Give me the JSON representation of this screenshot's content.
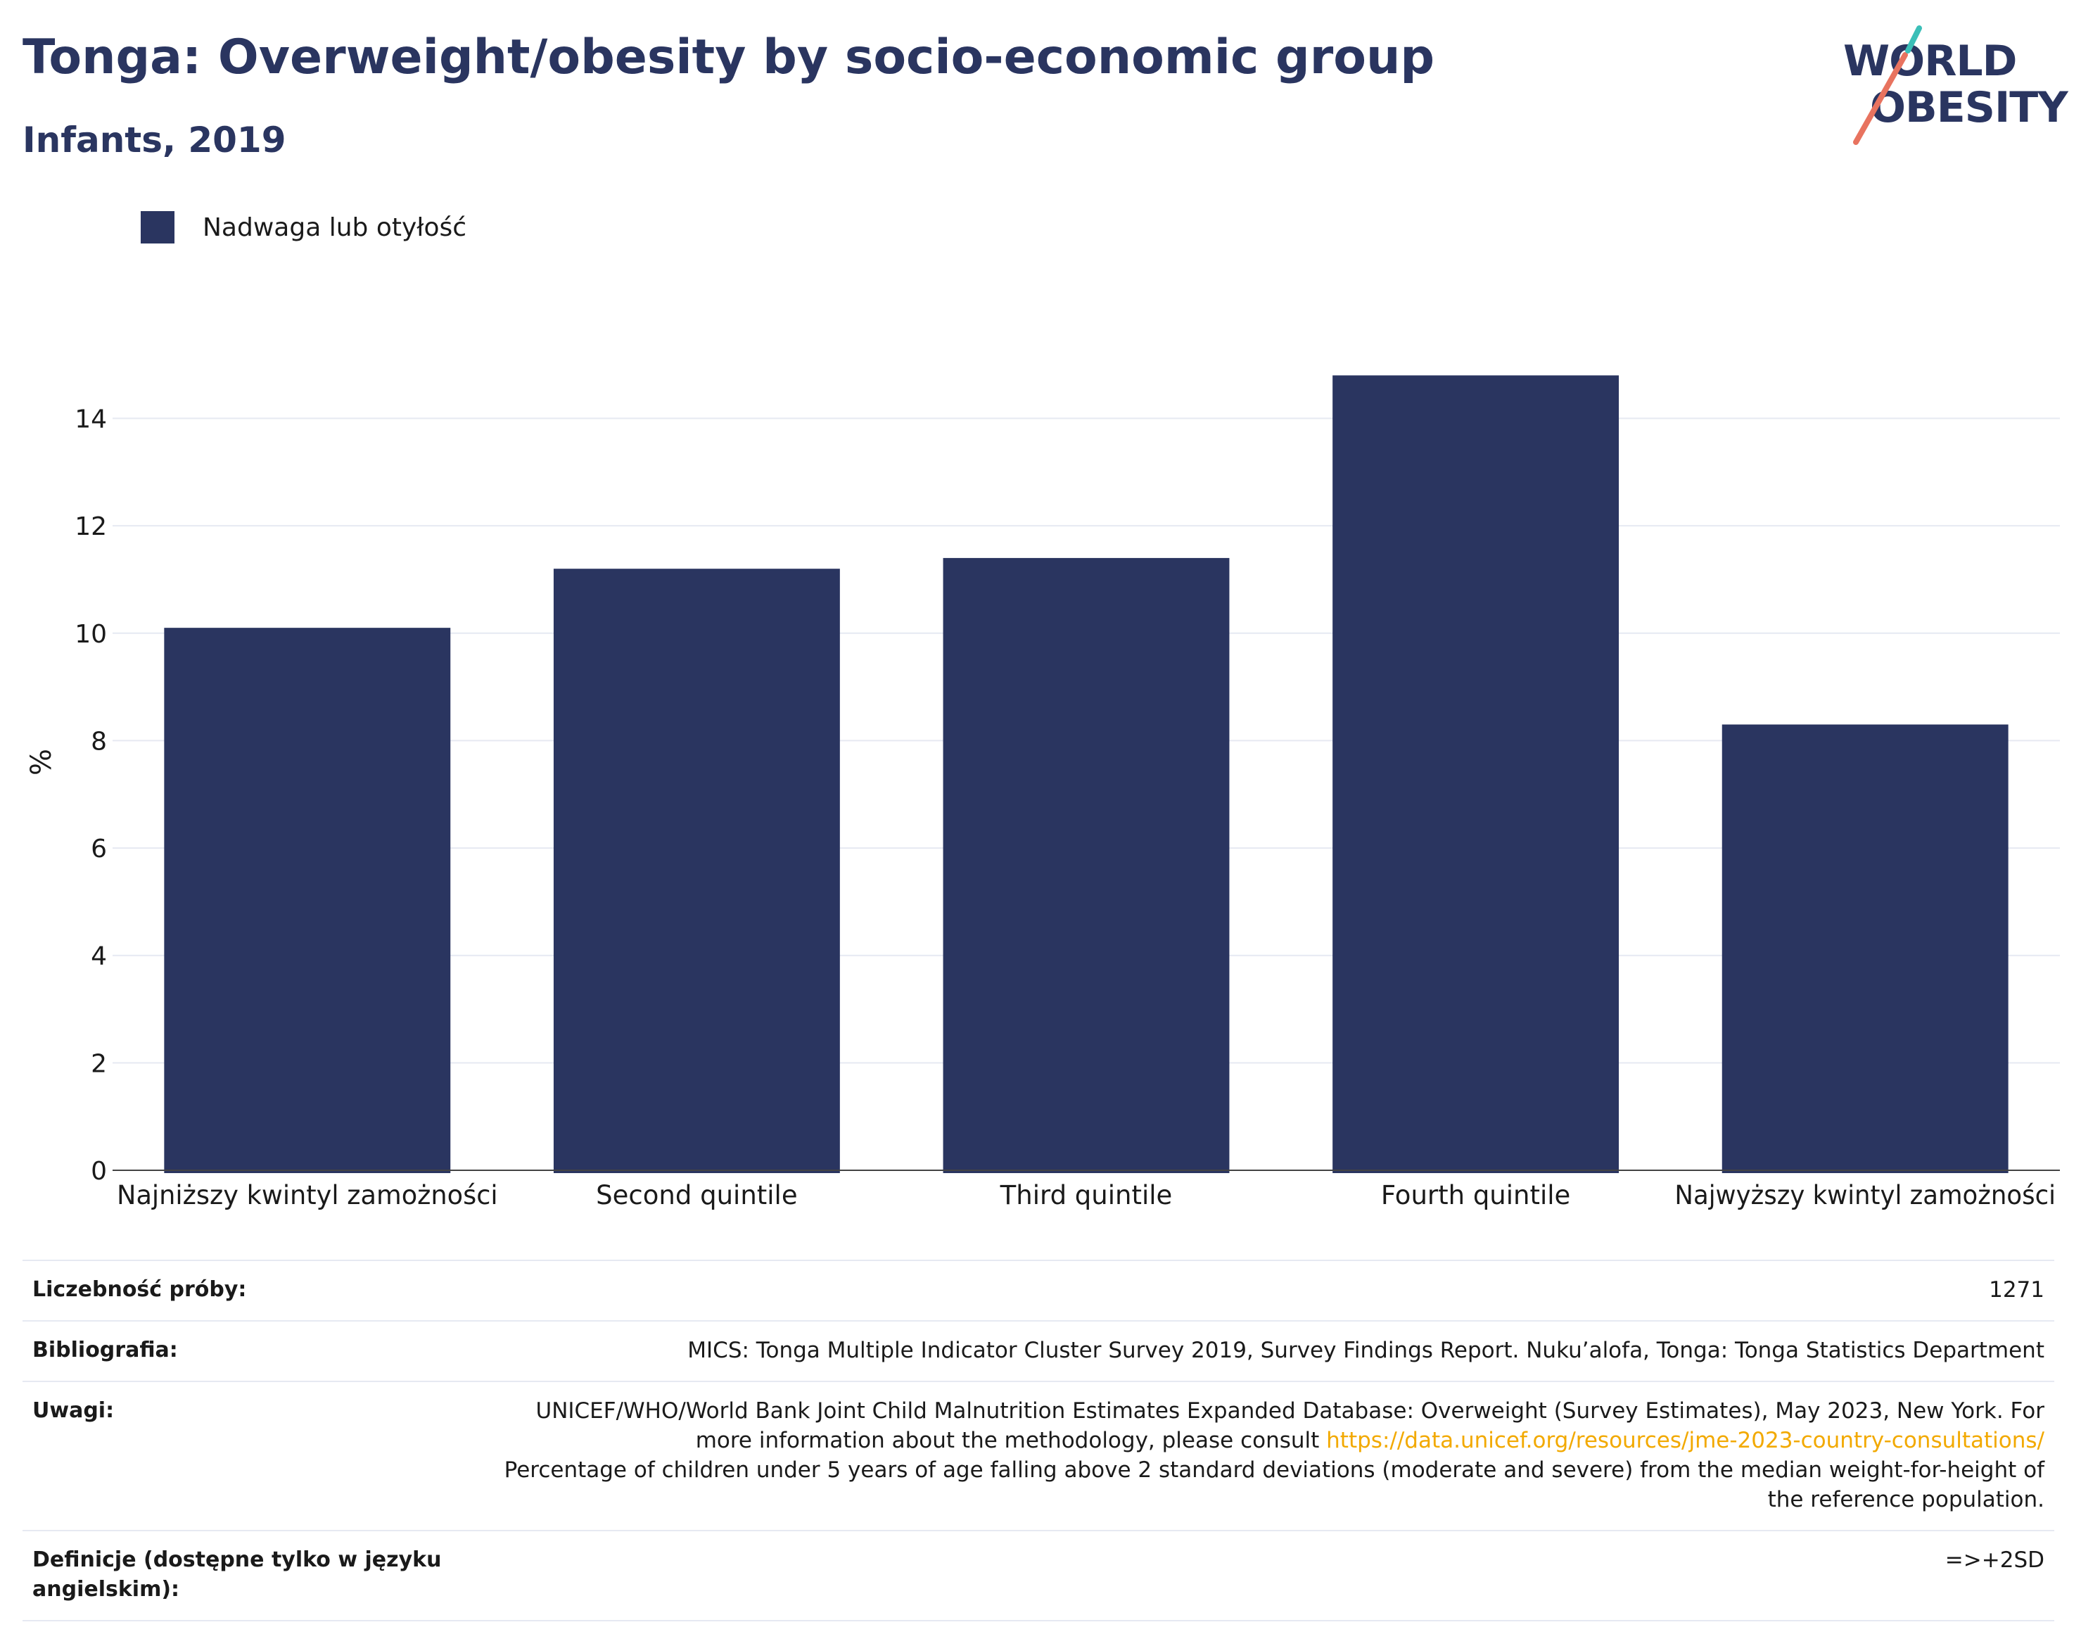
{
  "header": {
    "title": "Tonga: Overweight/obesity by socio-economic group",
    "subtitle": "Infants, 2019"
  },
  "logo": {
    "line1": "WORLD",
    "line2": "OBESITY",
    "slash_colors": [
      "#e8735f",
      "#3bbfb8"
    ]
  },
  "colors": {
    "bar": "#2a3560",
    "text_primary": "#2a3560",
    "link": "#f2a900",
    "grid": "#e6e9f2"
  },
  "chart_data": {
    "type": "bar",
    "categories": [
      "Najniższy kwintyl zamożności",
      "Second quintile",
      "Third quintile",
      "Fourth quintile",
      "Najwyższy kwintyl zamożności"
    ],
    "series": [
      {
        "name": "Nadwaga lub otyłość",
        "values": [
          10.1,
          11.2,
          11.4,
          14.8,
          8.3
        ]
      }
    ],
    "ylabel": "%",
    "ylim": [
      0,
      15.5
    ],
    "yticks": [
      0,
      2,
      4,
      6,
      8,
      10,
      12,
      14
    ],
    "grid": true,
    "legend_position": "top-left"
  },
  "info": {
    "sample_size": {
      "key": "Liczebność próby:",
      "value": "1271"
    },
    "bibliography": {
      "key": "Bibliografia:",
      "value": "MICS: Tonga Multiple Indicator Cluster Survey 2019, Survey Findings Report. Nuku’alofa, Tonga: Tonga Statistics Department"
    },
    "notes": {
      "key": "Uwagi:",
      "text1": "UNICEF/WHO/World Bank Joint Child Malnutrition Estimates Expanded Database: Overweight (Survey Estimates), May 2023, New York. For more information about the methodology, please consult ",
      "link": "https://data.unicef.org/resources/jme-2023-country-consultations/",
      "text2": "Percentage of children under 5 years of age falling above 2 standard deviations (moderate and severe) from the median weight-for-height of the reference population."
    },
    "definitions": {
      "key": "Definicje (dostępne tylko w języku angielskim):",
      "value": "=>+2SD"
    }
  }
}
